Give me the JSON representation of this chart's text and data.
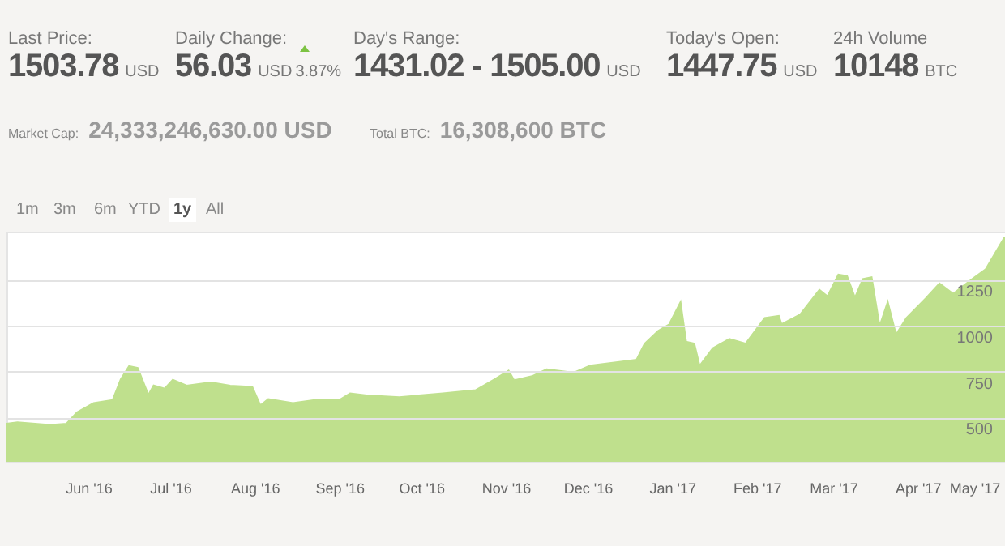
{
  "chart_data": {
    "type": "area",
    "annotations": [
      "Last Price:",
      "1503.78",
      "USD",
      "Daily Change:",
      "56.03",
      "USD",
      "3.87%",
      "Day's Range:",
      "1431.02 - 1505.00",
      "USD",
      "Today's Open:",
      "1447.75",
      "USD",
      "24h Volume",
      "10148",
      "BTC",
      "Market Cap:",
      "24,333,246,630.00 USD",
      "Total BTC:",
      "16,308,600 BTC",
      "1m",
      "3m",
      "6m",
      "YTD",
      "1y",
      "All"
    ],
    "x": [
      "2016-05-02",
      "2016-05-06",
      "2016-05-18",
      "2016-05-24",
      "2016-05-28",
      "2016-06-03",
      "2016-06-10",
      "2016-06-13",
      "2016-06-16",
      "2016-06-19",
      "2016-06-23",
      "2016-06-25",
      "2016-06-29",
      "2016-07-02",
      "2016-07-07",
      "2016-07-16",
      "2016-07-23",
      "2016-07-31",
      "2016-08-03",
      "2016-08-06",
      "2016-08-15",
      "2016-08-23",
      "2016-09-01",
      "2016-09-05",
      "2016-09-11",
      "2016-09-23",
      "2016-10-09",
      "2016-10-21",
      "2016-10-28",
      "2016-11-02",
      "2016-11-04",
      "2016-11-11",
      "2016-11-16",
      "2016-11-26",
      "2016-12-02",
      "2016-12-19",
      "2016-12-22",
      "2016-12-27",
      "2016-12-31",
      "2017-01-04",
      "2017-01-06",
      "2017-01-09",
      "2017-01-11",
      "2017-01-16",
      "2017-01-22",
      "2017-01-28",
      "2017-02-04",
      "2017-02-09",
      "2017-02-10",
      "2017-02-17",
      "2017-02-24",
      "2017-02-27",
      "2017-03-03",
      "2017-03-06",
      "2017-03-09",
      "2017-03-12",
      "2017-03-15",
      "2017-03-18",
      "2017-03-21",
      "2017-03-24",
      "2017-03-28",
      "2017-04-04",
      "2017-04-09",
      "2017-04-14",
      "2017-04-21",
      "2017-04-26",
      "2017-05-03"
    ],
    "series": [
      {
        "color": "#bfe08d",
        "values": [
          465,
          472,
          458,
          465,
          528,
          577,
          593,
          707,
          777,
          768,
          619,
          672,
          655,
          703,
          672,
          689,
          672,
          665,
          563,
          598,
          577,
          593,
          593,
          630,
          619,
          609,
          630,
          647,
          707,
          753,
          700,
          725,
          760,
          742,
          781,
          812,
          900,
          970,
          1005,
          1121,
          910,
          900,
          777,
          875,
          925,
          900,
          1040,
          1050,
          1005,
          1058,
          1191,
          1156,
          1275,
          1268,
          1146,
          1251,
          1260,
          988,
          1121,
          946,
          1040,
          1146,
          1226,
          1170,
          1251,
          1304,
          1480
        ]
      }
    ],
    "xlim": [
      "2016-05-02",
      "2017-05-03"
    ],
    "xticks": [
      {
        "value": "2016-06-01",
        "label": "Jun '16"
      },
      {
        "value": "2016-07-01",
        "label": "Jul '16"
      },
      {
        "value": "2016-08-01",
        "label": "Aug '16"
      },
      {
        "value": "2016-09-01",
        "label": "Sep '16"
      },
      {
        "value": "2016-10-01",
        "label": "Oct '16"
      },
      {
        "value": "2016-11-01",
        "label": "Nov '16"
      },
      {
        "value": "2016-12-01",
        "label": "Dec '16"
      },
      {
        "value": "2017-01-01",
        "label": "Jan '17"
      },
      {
        "value": "2017-02-01",
        "label": "Feb '17"
      },
      {
        "value": "2017-03-01",
        "label": "Mar '17"
      },
      {
        "value": "2017-04-01",
        "label": "Apr '17"
      },
      {
        "value": "2017-05-01",
        "label": "May '17"
      }
    ],
    "ylim": [
      260,
      1510
    ],
    "yticks": [
      500,
      750,
      1000,
      1250
    ],
    "grid": "y"
  }
}
